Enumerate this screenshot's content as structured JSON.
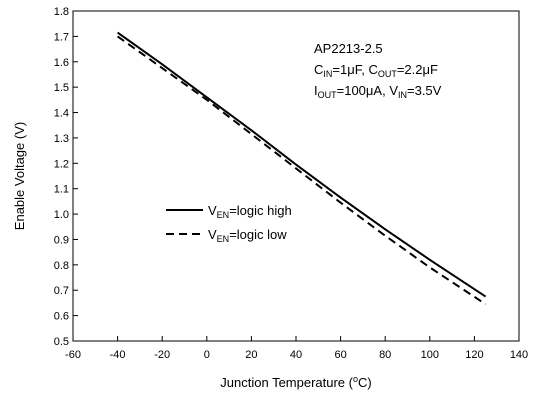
{
  "chart_data": {
    "type": "line",
    "title": "",
    "xlabel": "Junction Temperature (",
    "xlabel_sup": "o",
    "xlabel_end": "C)",
    "ylabel": "Enable Voltage (V)",
    "xlim": [
      -60,
      140
    ],
    "ylim": [
      0.5,
      1.8
    ],
    "xticks": [
      -60,
      -40,
      -20,
      0,
      20,
      40,
      60,
      80,
      100,
      120,
      140
    ],
    "yticks": [
      0.5,
      0.6,
      0.7,
      0.8,
      0.9,
      1.0,
      1.1,
      1.2,
      1.3,
      1.4,
      1.5,
      1.6,
      1.7,
      1.8
    ],
    "xtick_labels": [
      "-60",
      "-40",
      "-20",
      "0",
      "20",
      "40",
      "60",
      "80",
      "100",
      "120",
      "140"
    ],
    "ytick_labels": [
      "0.5",
      "0.6",
      "0.7",
      "0.8",
      "0.9",
      "1.0",
      "1.1",
      "1.2",
      "1.3",
      "1.4",
      "1.5",
      "1.6",
      "1.7",
      "1.8"
    ],
    "grid": false,
    "legend_position": "center-left",
    "series": [
      {
        "legend_v": "V",
        "legend_sub": "EN",
        "legend_rest": "=logic high",
        "style": "solid",
        "color": "#000000",
        "x": [
          -40,
          -20,
          0,
          20,
          40,
          60,
          80,
          100,
          125
        ],
        "y": [
          1.715,
          1.59,
          1.46,
          1.33,
          1.195,
          1.065,
          0.94,
          0.82,
          0.675
        ]
      },
      {
        "legend_v": "V",
        "legend_sub": "EN",
        "legend_rest": "=logic low",
        "style": "dashed",
        "color": "#000000",
        "x": [
          -40,
          -20,
          0,
          20,
          40,
          60,
          80,
          100,
          125
        ],
        "y": [
          1.7,
          1.575,
          1.45,
          1.315,
          1.18,
          1.045,
          0.915,
          0.79,
          0.645
        ]
      }
    ],
    "annotation": {
      "line1": "AP2213-2.5",
      "line2_c1": "C",
      "line2_c1_sub": "IN",
      "line2_c1_rest": "=1",
      "line2_mu": "μ",
      "line2_f1": "F, C",
      "line2_c2_sub": "OUT",
      "line2_c2_rest": "=2.2",
      "line2_f2": "F",
      "line3_i": "I",
      "line3_i_sub": "OUT",
      "line3_i_rest": "=100",
      "line3_a": "A, V",
      "line3_v_sub": "IN",
      "line3_v_rest": "=3.5V"
    }
  }
}
